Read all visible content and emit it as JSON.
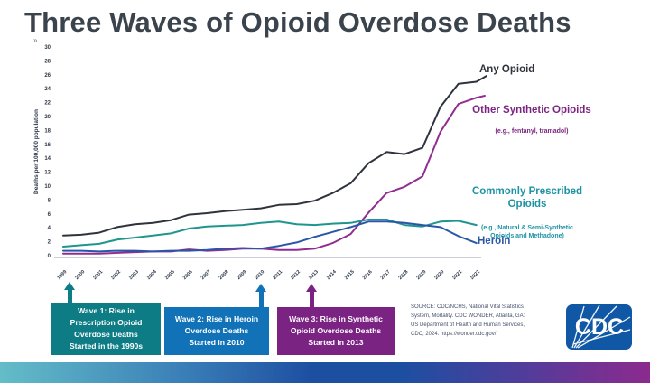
{
  "slide": {
    "title": "Three Waves of Opioid Overdose Deaths",
    "title_artifact": "»",
    "source_text": "SOURCE: CDC/NCHS, National Vital Statistics\nSystem, Mortality. CDC WONDER, Atlanta, GA:\nUS Department of Health and Human Services,\nCDC; 2024. https://wonder.cdc.gov/.",
    "cdc_logo_text": "CDC"
  },
  "chart_data": {
    "type": "line",
    "title": "Three Waves of Opioid Overdose Deaths",
    "xlabel": "",
    "ylabel": "Deaths per 100,000 population",
    "ylim": [
      0,
      30
    ],
    "ytick_step": 2,
    "grid": false,
    "legend_position": "right-inline",
    "x": [
      1999,
      2000,
      2001,
      2002,
      2003,
      2004,
      2005,
      2006,
      2007,
      2008,
      2009,
      2010,
      2011,
      2012,
      2013,
      2014,
      2015,
      2016,
      2017,
      2018,
      2019,
      2020,
      2021,
      2022
    ],
    "series": [
      {
        "name": "Any Opioid",
        "color": "#2f333c",
        "values": [
          2.9,
          3.0,
          3.3,
          4.1,
          4.5,
          4.7,
          5.1,
          5.9,
          6.1,
          6.4,
          6.6,
          6.8,
          7.3,
          7.4,
          7.9,
          9.0,
          10.4,
          13.3,
          14.9,
          14.6,
          15.5,
          21.4,
          24.7,
          25.0
        ]
      },
      {
        "name": "Other Synthetic Opioids",
        "subtitle": "(e.g., fentanyl, tramadol)",
        "color": "#8f2d91",
        "values": [
          0.3,
          0.3,
          0.3,
          0.4,
          0.5,
          0.6,
          0.6,
          0.9,
          0.7,
          0.8,
          1.0,
          1.0,
          0.8,
          0.8,
          1.0,
          1.8,
          3.1,
          6.2,
          9.0,
          9.9,
          11.4,
          17.8,
          21.8,
          22.7
        ]
      },
      {
        "name": "Commonly Prescribed Opioids",
        "subtitle": "(e.g., Natural & Semi-Synthetic Opioids and Methadone)",
        "color": "#1e968e",
        "values": [
          1.3,
          1.5,
          1.7,
          2.3,
          2.6,
          2.9,
          3.2,
          3.9,
          4.2,
          4.3,
          4.4,
          4.7,
          4.9,
          4.5,
          4.4,
          4.6,
          4.7,
          5.2,
          5.2,
          4.4,
          4.2,
          4.9,
          5.0,
          4.4
        ]
      },
      {
        "name": "Heroin",
        "color": "#2a56a7",
        "values": [
          0.7,
          0.7,
          0.6,
          0.7,
          0.7,
          0.6,
          0.7,
          0.7,
          0.8,
          1.0,
          1.1,
          1.0,
          1.4,
          1.9,
          2.7,
          3.4,
          4.1,
          4.9,
          4.9,
          4.7,
          4.4,
          4.1,
          2.8,
          1.8
        ]
      }
    ]
  },
  "legend": {
    "any_opioid": {
      "label": "Any Opioid",
      "color": "#2f333c"
    },
    "other_synthetic": {
      "label": "Other Synthetic Opioids",
      "sub": "(e.g., fentanyl, tramadol)",
      "color": "#7d2482"
    },
    "commonly_prescribed": {
      "label": "Commonly Prescribed\nOpioids",
      "sub": "(e.g., Natural & Semi-Synthetic\nOpioids and Methadone)",
      "color": "#1d93a5"
    },
    "heroin": {
      "label": "Heroin",
      "color": "#2a56a7"
    }
  },
  "waves": [
    {
      "label": "Wave 1: Rise in\nPrescription Opioid\nOverdose Deaths\nStarted in the 1990s",
      "color": "#0e7c85"
    },
    {
      "label": "Wave 2: Rise in Heroin\nOverdose Deaths\nStarted in 2010",
      "color": "#1172b8"
    },
    {
      "label": "Wave 3: Rise in Synthetic\nOpioid Overdose Deaths\nStarted in 2013",
      "color": "#7b2383"
    }
  ],
  "colors": {
    "title": "#3b444c",
    "axis_text": "#2e3a4a",
    "axis_line": "#cbd0d6",
    "cdc_logo_blue": "#1058a6",
    "bottom_bar_gradient": [
      "#64bdc8",
      "#1d4fa1",
      "#8c2a8e"
    ]
  }
}
